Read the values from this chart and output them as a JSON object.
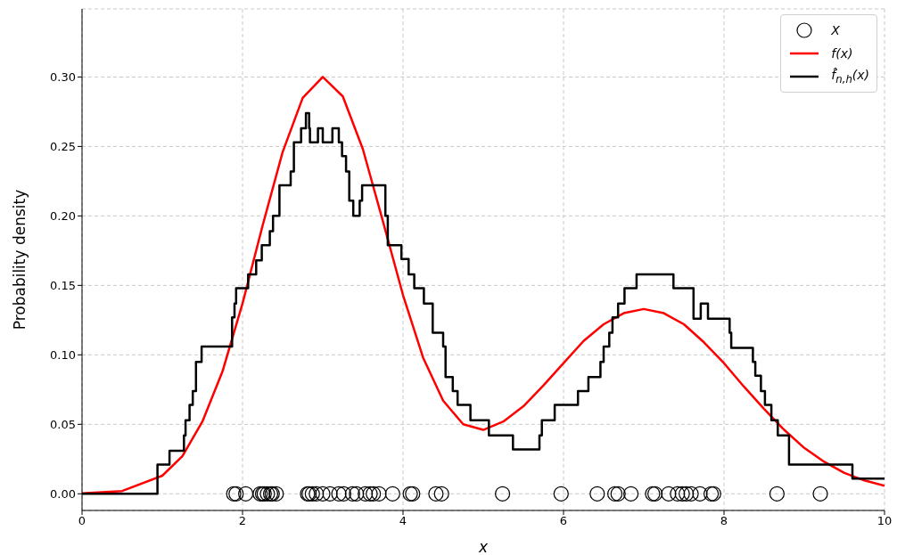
{
  "chart_data": {
    "type": "line",
    "xlabel": "x",
    "ylabel": "Probability density",
    "xlim": [
      0,
      10
    ],
    "ylim": [
      -0.012,
      0.349
    ],
    "xticks": [
      0,
      2,
      4,
      6,
      8,
      10
    ],
    "yticks": [
      {
        "value": 0,
        "label": "0.00"
      },
      {
        "value": 0.05,
        "label": "0.05"
      },
      {
        "value": 0.1,
        "label": "0.10"
      },
      {
        "value": 0.15,
        "label": "0.15"
      },
      {
        "value": 0.2,
        "label": "0.20"
      },
      {
        "value": 0.25,
        "label": "0.25"
      },
      {
        "value": 0.3,
        "label": "0.30"
      }
    ],
    "grid": true,
    "legend": "top right",
    "series": [
      {
        "name": "X",
        "type": "scatter",
        "marker": "circle",
        "color": "#000000",
        "x": [
          1.89,
          1.92,
          2.04,
          2.22,
          2.25,
          2.27,
          2.31,
          2.35,
          2.37,
          2.42,
          2.81,
          2.83,
          2.87,
          2.92,
          3.0,
          3.09,
          3.2,
          3.26,
          3.37,
          3.42,
          3.53,
          3.59,
          3.63,
          3.7,
          3.87,
          4.09,
          4.12,
          4.41,
          4.48,
          5.24,
          5.97,
          6.42,
          6.64,
          6.68,
          6.84,
          7.11,
          7.14,
          7.31,
          7.42,
          7.48,
          7.53,
          7.59,
          7.7,
          7.84,
          7.87,
          8.66,
          9.2
        ],
        "values": [
          0,
          0,
          0,
          0,
          0,
          0,
          0,
          0,
          0,
          0,
          0,
          0,
          0,
          0,
          0,
          0,
          0,
          0,
          0,
          0,
          0,
          0,
          0,
          0,
          0,
          0,
          0,
          0,
          0,
          0,
          0,
          0,
          0,
          0,
          0,
          0,
          0,
          0,
          0,
          0,
          0,
          0,
          0,
          0,
          0,
          0,
          0
        ]
      },
      {
        "name": "f(x)",
        "type": "line",
        "color": "#ff0000",
        "line_style": "solid",
        "x": [
          0,
          0.5,
          1,
          1.25,
          1.5,
          1.75,
          2,
          2.25,
          2.5,
          2.75,
          3,
          3.25,
          3.5,
          3.75,
          4,
          4.25,
          4.5,
          4.75,
          5,
          5.25,
          5.5,
          5.75,
          6,
          6.25,
          6.5,
          6.75,
          7,
          7.25,
          7.5,
          7.75,
          8,
          8.25,
          8.5,
          8.75,
          9,
          9.25,
          9.5,
          9.75,
          10
        ],
        "values": [
          0.0003,
          0.002,
          0.013,
          0.027,
          0.052,
          0.088,
          0.137,
          0.193,
          0.246,
          0.285,
          0.3,
          0.286,
          0.248,
          0.196,
          0.143,
          0.098,
          0.067,
          0.05,
          0.046,
          0.052,
          0.063,
          0.078,
          0.094,
          0.11,
          0.122,
          0.13,
          0.133,
          0.13,
          0.122,
          0.109,
          0.094,
          0.077,
          0.061,
          0.046,
          0.033,
          0.023,
          0.015,
          0.0096,
          0.0058
        ]
      },
      {
        "name": "f̂$_{n,h}$(x)",
        "type": "step",
        "color": "#000000",
        "line_style": "solid",
        "x": [
          0,
          0.94,
          1.09,
          1.27,
          1.29,
          1.34,
          1.38,
          1.42,
          1.49,
          1.87,
          1.9,
          1.92,
          2.07,
          2.17,
          2.24,
          2.34,
          2.38,
          2.46,
          2.6,
          2.64,
          2.73,
          2.79,
          2.83,
          2.84,
          2.94,
          3.0,
          3.12,
          3.2,
          3.24,
          3.29,
          3.33,
          3.38,
          3.46,
          3.49,
          3.78,
          3.81,
          3.98,
          4.07,
          4.14,
          4.26,
          4.37,
          4.5,
          4.53,
          4.62,
          4.68,
          4.84,
          5.07,
          5.37,
          5.7,
          5.73,
          5.89,
          6.18,
          6.31,
          6.46,
          6.5,
          6.57,
          6.61,
          6.68,
          6.76,
          6.91,
          7.37,
          7.62,
          7.71,
          7.8,
          8.07,
          8.09,
          8.36,
          8.39,
          8.46,
          8.51,
          8.59,
          8.67,
          8.81,
          9.6,
          10
        ],
        "values": [
          0,
          0.021,
          0.031,
          0.042,
          0.053,
          0.064,
          0.074,
          0.095,
          0.106,
          0.127,
          0.137,
          0.148,
          0.158,
          0.168,
          0.179,
          0.189,
          0.2,
          0.222,
          0.232,
          0.253,
          0.263,
          0.274,
          0.263,
          0.253,
          0.263,
          0.253,
          0.263,
          0.253,
          0.243,
          0.232,
          0.211,
          0.2,
          0.211,
          0.222,
          0.2,
          0.179,
          0.169,
          0.158,
          0.148,
          0.137,
          0.116,
          0.106,
          0.084,
          0.074,
          0.064,
          0.053,
          0.042,
          0.032,
          0.042,
          0.053,
          0.064,
          0.074,
          0.084,
          0.095,
          0.106,
          0.116,
          0.127,
          0.137,
          0.148,
          0.158,
          0.148,
          0.126,
          0.137,
          0.126,
          0.116,
          0.105,
          0.095,
          0.085,
          0.074,
          0.064,
          0.053,
          0.042,
          0.021,
          0.011,
          0.011
        ]
      }
    ]
  }
}
